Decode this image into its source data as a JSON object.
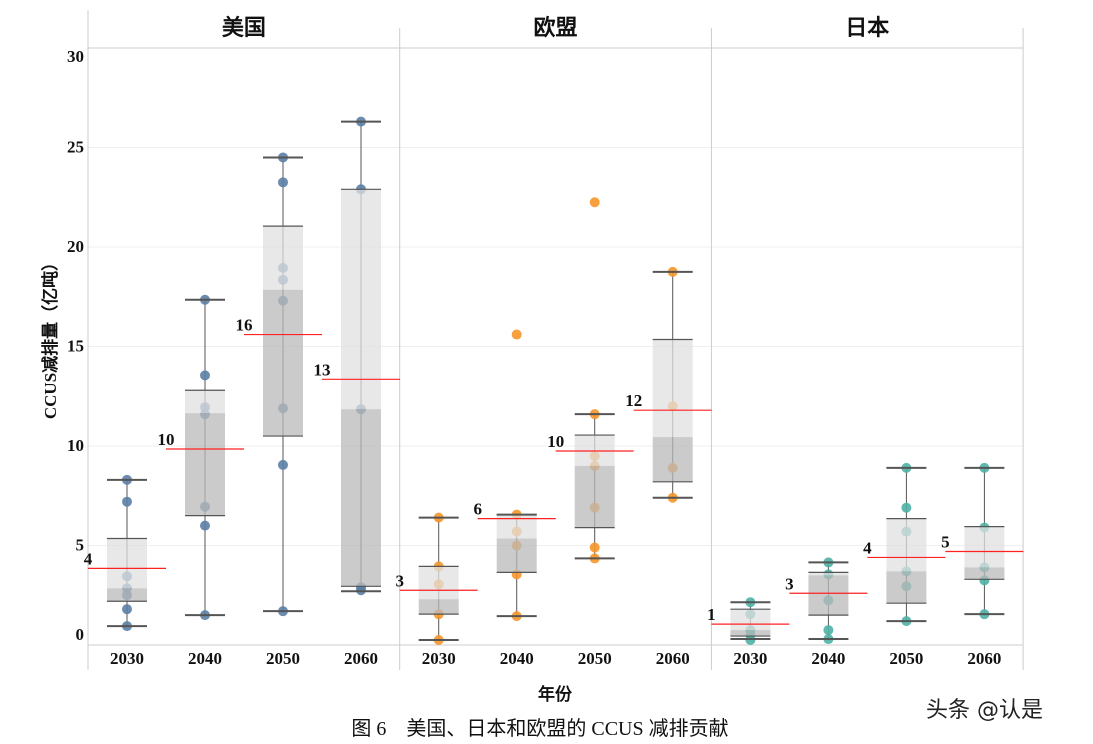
{
  "chart_data": {
    "type": "box",
    "title": "",
    "caption": "图 6　美国、日本和欧盟的 CCUS 减排贡献",
    "xlabel": "年份",
    "ylabel": "CCUS减排量（亿吨）",
    "ylim": [
      0,
      30
    ],
    "yticks": [
      0,
      5,
      10,
      15,
      20,
      25,
      30
    ],
    "grid": true,
    "categories": [
      "2030",
      "2040",
      "2050",
      "2060"
    ],
    "panels": [
      {
        "name": "美国",
        "color": "#5b80a5",
        "boxes": [
          {
            "year": "2030",
            "whisker_low": 0.95,
            "q1": 2.2,
            "median": 2.85,
            "q3": 5.35,
            "whisker_high": 8.3,
            "mean": 3.85,
            "mean_label": "4",
            "points": [
              8.3,
              7.2,
              3.45,
              2.85,
              2.5,
              1.8,
              0.95
            ]
          },
          {
            "year": "2040",
            "whisker_low": 1.5,
            "q1": 6.5,
            "median": 11.65,
            "q3": 12.8,
            "whisker_high": 17.35,
            "mean": 9.85,
            "mean_label": "10",
            "points": [
              17.35,
              13.55,
              11.95,
              11.6,
              6.95,
              6.0,
              1.5
            ]
          },
          {
            "year": "2050",
            "whisker_low": 1.7,
            "q1": 10.5,
            "median": 17.85,
            "q3": 21.05,
            "whisker_high": 24.5,
            "mean": 15.6,
            "mean_label": "16",
            "points": [
              24.5,
              23.25,
              18.95,
              18.35,
              17.3,
              11.9,
              9.05,
              1.7
            ]
          },
          {
            "year": "2060",
            "whisker_low": 2.7,
            "q1": 2.95,
            "median": 11.85,
            "q3": 22.9,
            "whisker_high": 26.3,
            "mean": 13.35,
            "mean_label": "13",
            "points": [
              26.3,
              22.9,
              11.85,
              2.9,
              2.75
            ]
          }
        ]
      },
      {
        "name": "欧盟",
        "color": "#f5962a",
        "boxes": [
          {
            "year": "2030",
            "whisker_low": 0.25,
            "q1": 1.55,
            "median": 2.3,
            "q3": 3.95,
            "whisker_high": 6.4,
            "mean": 2.75,
            "mean_label": "3",
            "points": [
              6.4,
              3.95,
              3.05,
              1.55,
              0.25
            ]
          },
          {
            "year": "2040",
            "whisker_low": 1.45,
            "q1": 3.65,
            "median": 5.35,
            "q3": 6.55,
            "whisker_high": 6.55,
            "mean": 6.35,
            "mean_label": "6",
            "points": [
              15.6,
              6.55,
              5.7,
              5.0,
              3.55,
              1.45
            ]
          },
          {
            "year": "2050",
            "whisker_low": 4.35,
            "q1": 5.9,
            "median": 9.0,
            "q3": 10.55,
            "whisker_high": 11.6,
            "mean": 9.75,
            "mean_label": "10",
            "points": [
              22.25,
              11.6,
              9.5,
              9.0,
              6.9,
              4.9,
              4.35
            ]
          },
          {
            "year": "2060",
            "whisker_low": 7.4,
            "q1": 8.2,
            "median": 10.45,
            "q3": 15.35,
            "whisker_high": 18.75,
            "mean": 11.8,
            "mean_label": "12",
            "points": [
              18.75,
              12.0,
              8.9,
              7.4
            ]
          }
        ]
      },
      {
        "name": "日本",
        "color": "#4fb0a6",
        "boxes": [
          {
            "year": "2030",
            "whisker_low": 0.3,
            "q1": 0.45,
            "median": 0.75,
            "q3": 1.8,
            "whisker_high": 2.15,
            "mean": 1.05,
            "mean_label": "1",
            "points": [
              2.15,
              1.55,
              0.75,
              0.5,
              0.25
            ]
          },
          {
            "year": "2040",
            "whisker_low": 0.3,
            "q1": 1.5,
            "median": 3.5,
            "q3": 3.65,
            "whisker_high": 4.15,
            "mean": 2.6,
            "mean_label": "3",
            "points": [
              4.15,
              3.55,
              2.25,
              0.75,
              0.3
            ]
          },
          {
            "year": "2050",
            "whisker_low": 1.2,
            "q1": 2.1,
            "median": 3.7,
            "q3": 6.35,
            "whisker_high": 8.9,
            "mean": 4.4,
            "mean_label": "4",
            "points": [
              8.9,
              6.9,
              5.7,
              3.7,
              2.95,
              1.2
            ]
          },
          {
            "year": "2060",
            "whisker_low": 1.55,
            "q1": 3.3,
            "median": 3.9,
            "q3": 5.95,
            "whisker_high": 8.9,
            "mean": 4.7,
            "mean_label": "5",
            "points": [
              8.9,
              5.9,
              3.9,
              3.25,
              1.55
            ]
          }
        ]
      }
    ],
    "box_colors": {
      "upper": "#e0e0e0",
      "lower": "#b9b9b9",
      "mean_line": "#ff2020"
    }
  },
  "watermark": "头条 @认是"
}
